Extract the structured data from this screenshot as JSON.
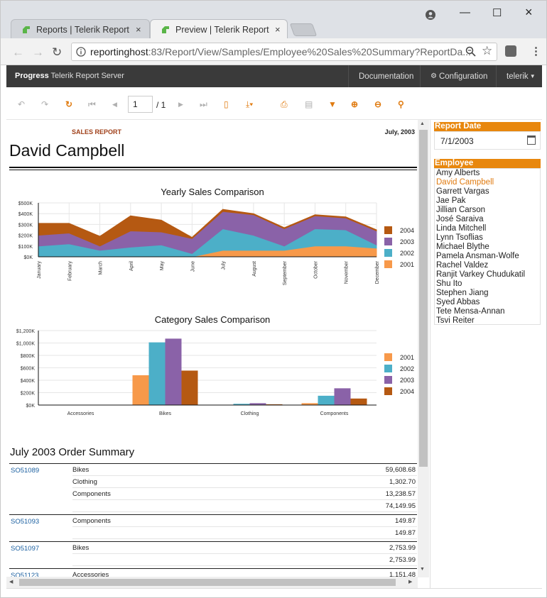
{
  "browser": {
    "tabs": [
      {
        "label": "Reports | Telerik Report S",
        "active": false
      },
      {
        "label": "Preview | Telerik Report S",
        "active": true
      }
    ],
    "url_host": "reportinghost",
    "url_rest": ":83/Report/View/Samples/Employee%20Sales%20Summary?ReportDa...",
    "close_glyph": "×",
    "minimize_glyph": "—",
    "maximize_glyph": "☐"
  },
  "app_header": {
    "brand_bold": "Progress",
    "brand_rest": " Telerik Report Server",
    "nav": [
      "Documentation",
      "Configuration",
      "telerik"
    ]
  },
  "toolbar": {
    "page_current": "1",
    "page_total": "/ 1"
  },
  "report": {
    "header_label": "SALES REPORT",
    "date": "July, 2003",
    "employee": "David Campbell",
    "order_summary_title": "July 2003 Order Summary",
    "orders": [
      {
        "id": "SO51089",
        "lines": [
          [
            "Bikes",
            "59,608.68"
          ],
          [
            "Clothing",
            "1,302.70"
          ],
          [
            "Components",
            "13,238.57"
          ]
        ],
        "total": "74,149.95"
      },
      {
        "id": "SO51093",
        "lines": [
          [
            "Components",
            "149.87"
          ]
        ],
        "total": "149.87"
      },
      {
        "id": "SO51097",
        "lines": [
          [
            "Bikes",
            "2,753.99"
          ]
        ],
        "total": "2,753.99"
      },
      {
        "id": "SO51123",
        "lines": [
          [
            "Accessories",
            "1,151.48"
          ]
        ],
        "total": ""
      }
    ]
  },
  "chart_data": [
    {
      "type": "area",
      "title": "Yearly Sales Comparison",
      "categories": [
        "January",
        "February",
        "March",
        "April",
        "May",
        "June",
        "July",
        "August",
        "September",
        "October",
        "November",
        "December"
      ],
      "y_ticks": [
        "$0K",
        "$100K",
        "$200K",
        "$300K",
        "$400K",
        "$500K"
      ],
      "ylim": [
        0,
        500
      ],
      "stacked": true,
      "legend_position": "right",
      "series": [
        {
          "name": "2001",
          "color": "#f7994a",
          "values": [
            0,
            0,
            0,
            0,
            0,
            0,
            60,
            60,
            60,
            100,
            100,
            80
          ]
        },
        {
          "name": "2002",
          "color": "#4cafc8",
          "values": [
            100,
            120,
            60,
            90,
            110,
            30,
            200,
            140,
            40,
            160,
            150,
            30
          ]
        },
        {
          "name": "2003",
          "color": "#8a62a8",
          "values": [
            100,
            100,
            40,
            150,
            120,
            140,
            160,
            190,
            160,
            120,
            110,
            130
          ]
        },
        {
          "name": "2004",
          "color": "#b55912",
          "values": [
            110,
            90,
            90,
            140,
            110,
            10,
            20,
            10,
            10,
            10,
            10,
            10
          ]
        }
      ]
    },
    {
      "type": "bar",
      "title": "Category Sales Comparison",
      "categories": [
        "Accessories",
        "Bikes",
        "Clothing",
        "Components"
      ],
      "y_ticks": [
        "$0K",
        "$200K",
        "$400K",
        "$600K",
        "$800K",
        "$1,000K",
        "$1,200K"
      ],
      "ylim": [
        0,
        1200
      ],
      "legend_position": "right",
      "series": [
        {
          "name": "2001",
          "color": "#f7994a",
          "values": [
            2,
            480,
            4,
            30
          ]
        },
        {
          "name": "2002",
          "color": "#4cafc8",
          "values": [
            3,
            1010,
            20,
            150
          ]
        },
        {
          "name": "2003",
          "color": "#8a62a8",
          "values": [
            5,
            1070,
            30,
            270
          ]
        },
        {
          "name": "2004",
          "color": "#b55912",
          "values": [
            4,
            555,
            12,
            105
          ]
        }
      ]
    }
  ],
  "params": {
    "report_date_label": "Report Date",
    "report_date_value": "7/1/2003",
    "employee_label": "Employee",
    "employees": [
      "Amy Alberts",
      "David Campbell",
      "Garrett Vargas",
      "Jae Pak",
      "Jillian Carson",
      "José Saraiva",
      "Linda Mitchell",
      "Lynn Tsoflias",
      "Michael Blythe",
      "Pamela Ansman-Wolfe",
      "Rachel Valdez",
      "Ranjit Varkey Chudukatil",
      "Shu Ito",
      "Stephen Jiang",
      "Syed Abbas",
      "Tete Mensa-Annan",
      "Tsvi Reiter"
    ],
    "selected_employee": "David Campbell"
  },
  "colors": {
    "accent": "#e8870d",
    "header_bg": "#3a3a3a",
    "link": "#1a5fa0"
  }
}
